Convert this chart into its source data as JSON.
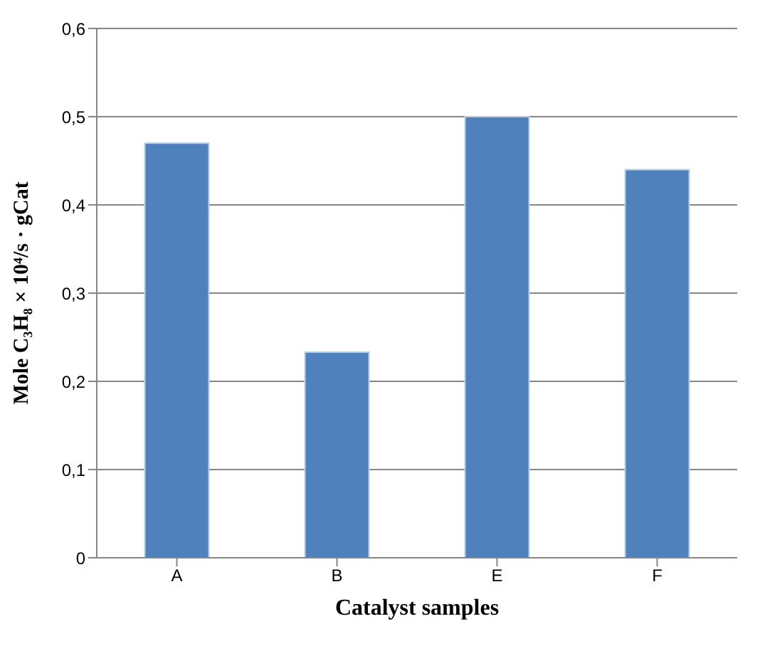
{
  "chart_data": {
    "type": "bar",
    "xlabel": "Catalyst samples",
    "ylabel": "Mole C₃H₈ × 10⁴/s · gCat",
    "categories": [
      "A",
      "B",
      "E",
      "F"
    ],
    "values": [
      0.47,
      0.233,
      0.5,
      0.44
    ],
    "color": "#4f81bd",
    "ylim": [
      0,
      0.6
    ],
    "yticks": [
      {
        "value": 0,
        "label": "0"
      },
      {
        "value": 0.1,
        "label": "0,1"
      },
      {
        "value": 0.2,
        "label": "0,2"
      },
      {
        "value": 0.3,
        "label": "0,3"
      },
      {
        "value": 0.4,
        "label": "0,4"
      },
      {
        "value": 0.5,
        "label": "0,5"
      },
      {
        "value": 0.6,
        "label": "0,6"
      }
    ],
    "grid": "y"
  }
}
